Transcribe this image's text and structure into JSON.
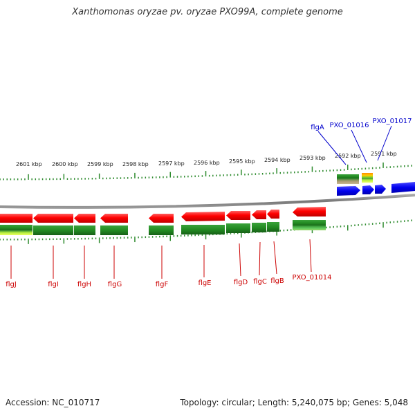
{
  "title": "Xanthomonas oryzae pv. oryzae PXO99A, complete genome",
  "footer": {
    "accession": "Accession: NC_010717",
    "summary": "Topology: circular; Length: 5,240,075 bp; Genes: 5,048"
  },
  "kbp_labels": [
    "2601 kbp",
    "2600 kbp",
    "2599 kbp",
    "2598 kbp",
    "2597 kbp",
    "2596 kbp",
    "2595 kbp",
    "2594 kbp",
    "2593 kbp",
    "2592 kbp",
    "2591 kbp"
  ],
  "genes_reverse": [
    "flgJ",
    "flgI",
    "flgH",
    "flgG",
    "flgF",
    "flgE",
    "flgD",
    "flgC",
    "flgB",
    "PXO_01014"
  ],
  "genes_forward": [
    "flgA",
    "PXO_01016",
    "PXO_01017"
  ],
  "colors": {
    "reverse_strand": "#ff0000",
    "forward_strand": "#0000ee",
    "cds_track": "#228b22",
    "backbone": "#888888",
    "ticks": "#2e8b2e",
    "reverse_label": "#cc0000",
    "forward_label": "#0000cc"
  }
}
